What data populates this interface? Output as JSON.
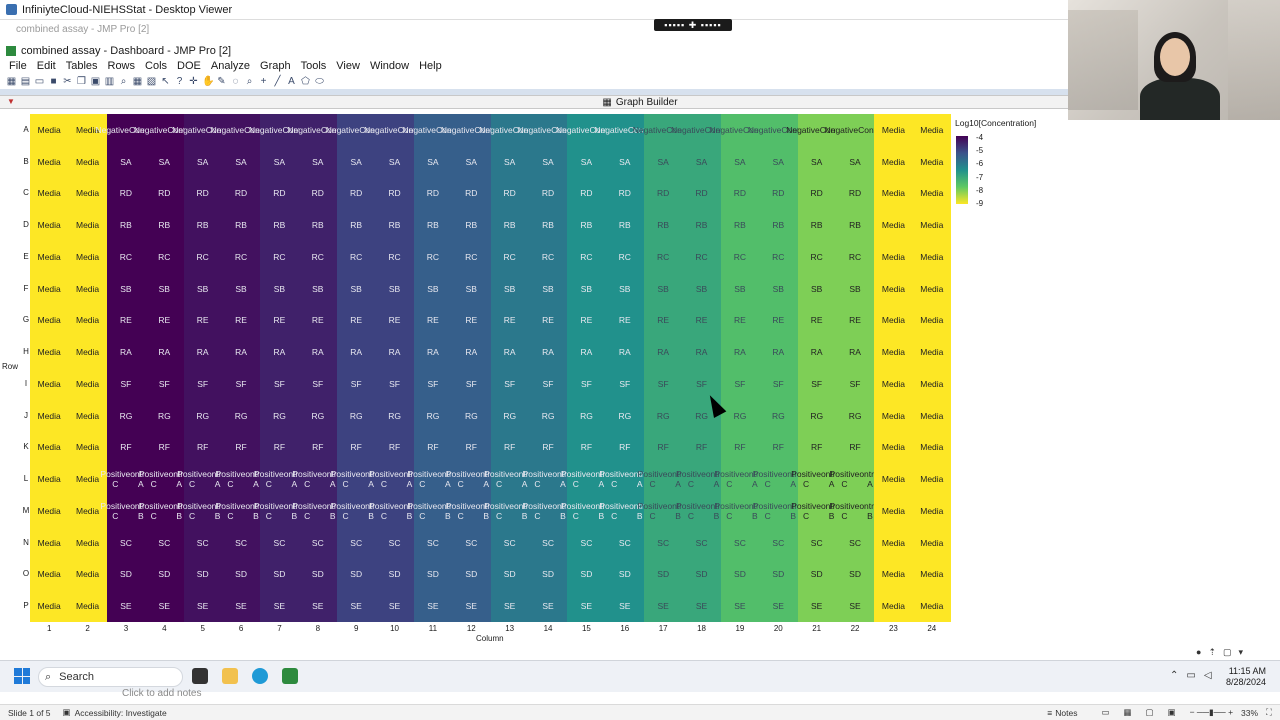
{
  "remote_title": "InfiniyteCloud-NIEHSStat - Desktop Viewer",
  "ghost_title": "combined assay - JMP Pro [2]",
  "jmp_title": "combined assay - Dashboard - JMP Pro [2]",
  "menu": [
    "File",
    "Edit",
    "Tables",
    "Rows",
    "Cols",
    "DOE",
    "Analyze",
    "Graph",
    "Tools",
    "View",
    "Window",
    "Help"
  ],
  "panel_title": "Graph Builder",
  "chart_data": {
    "type": "heatmap",
    "title": "",
    "xlabel": "Column",
    "ylabel": "Row",
    "color_label": "Log10[Concentration]",
    "color_scale": [
      "#440154",
      "#3b528b",
      "#21918c",
      "#5ec962",
      "#fde725"
    ],
    "legend_ticks": [
      "-4",
      "-5",
      "-6",
      "-7",
      "-8",
      "-9"
    ],
    "rows": [
      "A",
      "B",
      "C",
      "D",
      "E",
      "F",
      "G",
      "H",
      "I",
      "J",
      "K",
      "L",
      "M",
      "N",
      "O",
      "P"
    ],
    "columns": [
      "1",
      "2",
      "3",
      "4",
      "5",
      "6",
      "7",
      "8",
      "9",
      "10",
      "11",
      "12",
      "13",
      "14",
      "15",
      "16",
      "17",
      "18",
      "19",
      "20",
      "21",
      "22",
      "23",
      "24"
    ],
    "column_log10_concentration": [
      -9,
      -9,
      -4,
      -4,
      -4.25,
      -4.25,
      -4.5,
      -4.5,
      -5,
      -5,
      -5.5,
      -5.5,
      -6,
      -6,
      -6.5,
      -6.5,
      -7,
      -7,
      -7.5,
      -7.5,
      -8,
      -8,
      -9,
      -9
    ],
    "edge_label": "Media",
    "row_labels": [
      "Negative Control",
      "SA",
      "RD",
      "RB",
      "RC",
      "SB",
      "RE",
      "RA",
      "SF",
      "RG",
      "RF",
      "Positive Control A",
      "Positive Control B",
      "SC",
      "SD",
      "SE"
    ],
    "row_display": [
      [
        "Negative",
        "Control"
      ],
      [
        "SA"
      ],
      [
        "RD"
      ],
      [
        "RB"
      ],
      [
        "RC"
      ],
      [
        "SB"
      ],
      [
        "RE"
      ],
      [
        "RA"
      ],
      [
        "SF"
      ],
      [
        "RG"
      ],
      [
        "RF"
      ],
      [
        "Positive C",
        "ontrol A"
      ],
      [
        "Positive C",
        "ontrol B"
      ],
      [
        "SC"
      ],
      [
        "SD"
      ],
      [
        "SE"
      ]
    ]
  },
  "taskbar": {
    "search_placeholder": "Search",
    "time": "11:15 AM",
    "date": "8/28/2024"
  },
  "notes_placeholder": "Click to add notes",
  "status": {
    "slide": "Slide 1 of 5",
    "accessibility": "Accessibility: Investigate",
    "notes": "Notes",
    "zoom": "33%"
  }
}
